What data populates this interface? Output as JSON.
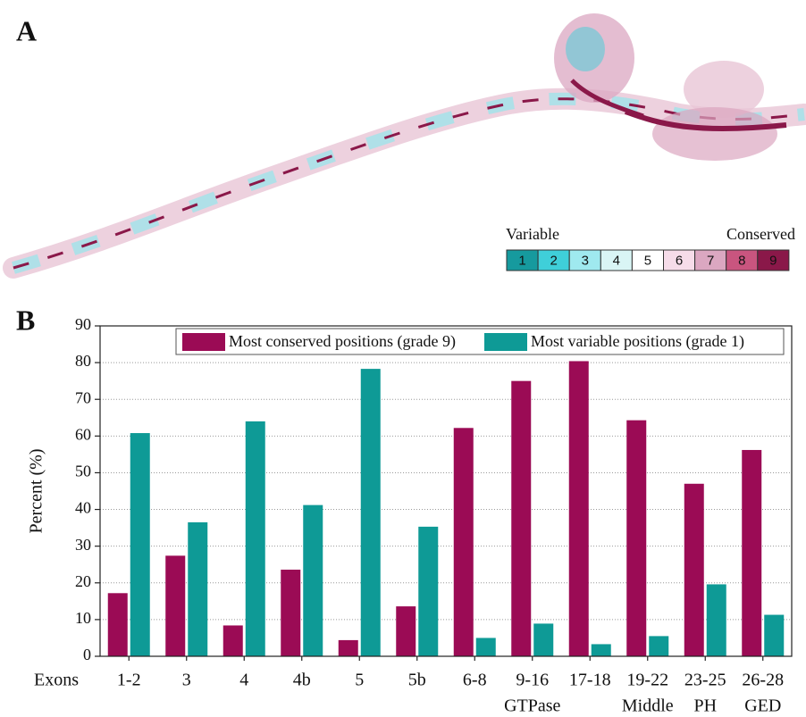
{
  "panel_a": {
    "label": "A",
    "scale_left": "Variable",
    "scale_right": "Conserved",
    "grades": [
      1,
      2,
      3,
      4,
      5,
      6,
      7,
      8,
      9
    ],
    "grade_colors": [
      "#169a9e",
      "#3fcfd9",
      "#9fe9ef",
      "#d9f5f5",
      "#ffffff",
      "#f6dce9",
      "#dba7c1",
      "#c9557f",
      "#8a1849"
    ]
  },
  "chart_data": {
    "type": "bar",
    "panel_label": "B",
    "y_label": "Percent (%)",
    "x_label": "Exons",
    "categories": [
      "1-2",
      "3",
      "4",
      "4b",
      "5",
      "5b",
      "6-8",
      "9-16",
      "17-18",
      "19-22",
      "23-25",
      "26-28"
    ],
    "domain_labels": [
      null,
      null,
      null,
      null,
      null,
      null,
      null,
      "GTPase",
      null,
      "Middle",
      "PH",
      "GED"
    ],
    "series": [
      {
        "name": "Most conserved positions (grade 9)",
        "color": "#9b0b55",
        "values": [
          17.2,
          27.4,
          8.4,
          23.6,
          4.4,
          13.6,
          62.2,
          75,
          80.4,
          64.3,
          47,
          56.2
        ]
      },
      {
        "name": "Most variable positions (grade 1)",
        "color": "#0e9a96",
        "values": [
          60.8,
          36.5,
          64,
          41.2,
          78.3,
          35.3,
          5,
          8.9,
          3.3,
          5.5,
          19.6,
          11.3
        ]
      }
    ],
    "ylim": [
      0,
      90
    ],
    "yticks": [
      0,
      10,
      20,
      30,
      40,
      50,
      60,
      70,
      80,
      90
    ],
    "grid": true
  }
}
